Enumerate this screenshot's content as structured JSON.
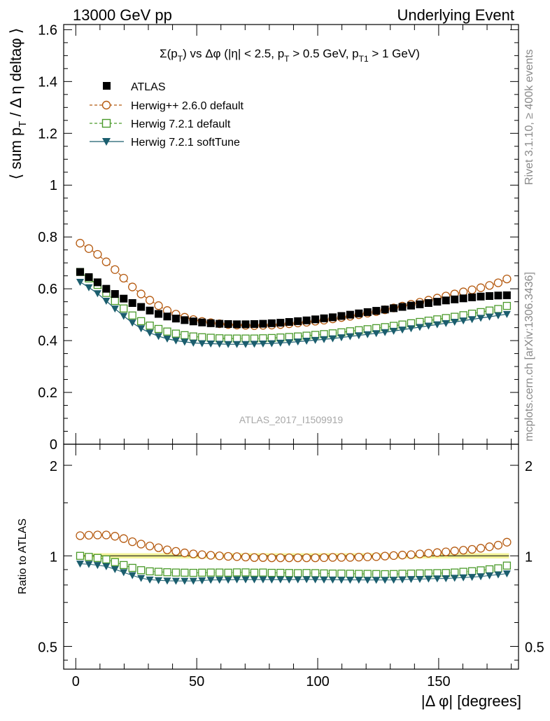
{
  "header": {
    "left": "13000 GeV pp",
    "right": "Underlying Event"
  },
  "side_labels": {
    "rivet": "Rivet 3.1.10, ≥ 400k events",
    "mcplots": "mcplots.cern.ch [arXiv:1306.3436]"
  },
  "chart_data": [
    {
      "type": "scatter",
      "title": "Σ(p_T) vs Δφ (|η| < 2.5, p_T > 0.5 GeV, p_T1 > 1 GeV)",
      "watermark": "ATLAS_2017_I1509919",
      "ylabel": "⟨ sum p_T / Δ η deltaφ ⟩",
      "xlabel": "",
      "xlim": [
        -5,
        183
      ],
      "ylim": [
        0,
        1.62
      ],
      "yticks": [
        "0.2",
        "0.4",
        "0.6",
        "0.8",
        "1",
        "1.2",
        "1.4",
        "1.6"
      ],
      "ytick_values": [
        0.2,
        0.4,
        0.6,
        0.8,
        1.0,
        1.2,
        1.4,
        1.6
      ],
      "partial_tick_label": "0",
      "legend_position": "top-left",
      "x": [
        1.8,
        5.4,
        9,
        12.6,
        16.2,
        19.8,
        23.4,
        27,
        30.6,
        34.2,
        37.8,
        41.4,
        45,
        48.6,
        52.2,
        55.8,
        59.4,
        63,
        66.6,
        70.2,
        73.8,
        77.4,
        81,
        84.6,
        88.2,
        91.8,
        95.4,
        99,
        102.6,
        106.2,
        109.8,
        113.4,
        117,
        120.6,
        124.2,
        127.8,
        131.4,
        135,
        138.6,
        142.2,
        145.8,
        149.4,
        153,
        156.6,
        160.2,
        163.8,
        167.4,
        171,
        174.6,
        178.2
      ],
      "series": [
        {
          "name": "ATLAS",
          "color": "#000000",
          "marker": "filled-square",
          "line": "none",
          "values": [
            0.665,
            0.645,
            0.625,
            0.6,
            0.58,
            0.562,
            0.545,
            0.53,
            0.516,
            0.503,
            0.493,
            0.485,
            0.479,
            0.474,
            0.47,
            0.467,
            0.465,
            0.464,
            0.463,
            0.463,
            0.464,
            0.465,
            0.467,
            0.469,
            0.472,
            0.475,
            0.478,
            0.482,
            0.486,
            0.49,
            0.495,
            0.5,
            0.505,
            0.51,
            0.515,
            0.52,
            0.525,
            0.53,
            0.535,
            0.54,
            0.545,
            0.55,
            0.555,
            0.559,
            0.563,
            0.567,
            0.57,
            0.572,
            0.574,
            0.575
          ]
        },
        {
          "name": "Herwig++ 2.6.0 default",
          "color": "#b55a10",
          "marker": "open-circle",
          "line": "dashed",
          "values": [
            0.776,
            0.755,
            0.733,
            0.704,
            0.674,
            0.641,
            0.607,
            0.58,
            0.556,
            0.535,
            0.516,
            0.502,
            0.49,
            0.481,
            0.474,
            0.469,
            0.465,
            0.462,
            0.46,
            0.459,
            0.458,
            0.459,
            0.46,
            0.462,
            0.465,
            0.468,
            0.471,
            0.475,
            0.479,
            0.484,
            0.489,
            0.494,
            0.5,
            0.506,
            0.512,
            0.519,
            0.526,
            0.533,
            0.54,
            0.548,
            0.556,
            0.564,
            0.572,
            0.58,
            0.588,
            0.596,
            0.604,
            0.613,
            0.623,
            0.638
          ]
        },
        {
          "name": "Herwig 7.2.1 default",
          "color": "#4a9a2a",
          "marker": "open-square",
          "line": "dashed",
          "values": [
            0.665,
            0.64,
            0.615,
            0.584,
            0.553,
            0.524,
            0.497,
            0.475,
            0.458,
            0.445,
            0.435,
            0.427,
            0.421,
            0.416,
            0.413,
            0.411,
            0.409,
            0.408,
            0.408,
            0.408,
            0.408,
            0.409,
            0.41,
            0.412,
            0.414,
            0.416,
            0.419,
            0.422,
            0.425,
            0.428,
            0.432,
            0.436,
            0.44,
            0.444,
            0.448,
            0.452,
            0.457,
            0.462,
            0.467,
            0.472,
            0.477,
            0.482,
            0.487,
            0.492,
            0.498,
            0.504,
            0.51,
            0.516,
            0.522,
            0.534
          ]
        },
        {
          "name": "Herwig 7.2.1 softTune",
          "color": "#1b5e6e",
          "marker": "filled-triangle-down",
          "line": "solid",
          "values": [
            0.626,
            0.605,
            0.582,
            0.553,
            0.523,
            0.495,
            0.469,
            0.447,
            0.43,
            0.417,
            0.407,
            0.4,
            0.395,
            0.391,
            0.389,
            0.388,
            0.387,
            0.386,
            0.386,
            0.386,
            0.387,
            0.388,
            0.389,
            0.391,
            0.393,
            0.396,
            0.399,
            0.402,
            0.405,
            0.408,
            0.412,
            0.416,
            0.42,
            0.424,
            0.428,
            0.432,
            0.437,
            0.442,
            0.447,
            0.452,
            0.457,
            0.462,
            0.467,
            0.472,
            0.477,
            0.482,
            0.487,
            0.492,
            0.497,
            0.502
          ]
        }
      ]
    },
    {
      "type": "scatter",
      "title": "",
      "ylabel": "Ratio to ATLAS",
      "xlabel": "|Δ φ| [degrees]",
      "xlim": [
        -5,
        183
      ],
      "ylim": [
        0.42,
        2.35
      ],
      "yscale": "log",
      "yticks": [
        "0.5",
        "1",
        "2"
      ],
      "ytick_values": [
        0.5,
        1,
        2
      ],
      "xticks": [
        "0",
        "50",
        "100",
        "150"
      ],
      "xtick_values": [
        0,
        50,
        100,
        150
      ],
      "band": {
        "color": "#f4f49a",
        "half_width": 0.02
      },
      "x": [
        1.8,
        5.4,
        9,
        12.6,
        16.2,
        19.8,
        23.4,
        27,
        30.6,
        34.2,
        37.8,
        41.4,
        45,
        48.6,
        52.2,
        55.8,
        59.4,
        63,
        66.6,
        70.2,
        73.8,
        77.4,
        81,
        84.6,
        88.2,
        91.8,
        95.4,
        99,
        102.6,
        106.2,
        109.8,
        113.4,
        117,
        120.6,
        124.2,
        127.8,
        131.4,
        135,
        138.6,
        142.2,
        145.8,
        149.4,
        153,
        156.6,
        160.2,
        163.8,
        167.4,
        171,
        174.6,
        178.2
      ],
      "series": [
        {
          "name": "Herwig++ 2.6.0 default",
          "color": "#b55a10",
          "marker": "open-circle",
          "values": [
            1.167,
            1.171,
            1.173,
            1.173,
            1.162,
            1.141,
            1.114,
            1.094,
            1.078,
            1.064,
            1.047,
            1.035,
            1.023,
            1.015,
            1.009,
            1.004,
            1.0,
            0.996,
            0.994,
            0.991,
            0.987,
            0.987,
            0.985,
            0.985,
            0.985,
            0.985,
            0.985,
            0.985,
            0.986,
            0.988,
            0.988,
            0.988,
            0.99,
            0.992,
            0.994,
            0.998,
            1.002,
            1.006,
            1.009,
            1.015,
            1.02,
            1.025,
            1.031,
            1.038,
            1.044,
            1.051,
            1.06,
            1.072,
            1.085,
            1.11
          ]
        },
        {
          "name": "Herwig 7.2.1 default",
          "color": "#4a9a2a",
          "marker": "open-square",
          "values": [
            1.0,
            0.992,
            0.984,
            0.973,
            0.953,
            0.932,
            0.912,
            0.896,
            0.888,
            0.885,
            0.882,
            0.88,
            0.879,
            0.878,
            0.879,
            0.88,
            0.88,
            0.879,
            0.881,
            0.881,
            0.879,
            0.88,
            0.878,
            0.878,
            0.877,
            0.876,
            0.877,
            0.876,
            0.874,
            0.873,
            0.873,
            0.872,
            0.871,
            0.871,
            0.87,
            0.869,
            0.87,
            0.872,
            0.873,
            0.874,
            0.875,
            0.876,
            0.877,
            0.88,
            0.885,
            0.889,
            0.895,
            0.902,
            0.909,
            0.928
          ]
        },
        {
          "name": "Herwig 7.2.1 softTune",
          "color": "#1b5e6e",
          "marker": "filled-triangle-down",
          "values": [
            0.941,
            0.938,
            0.931,
            0.922,
            0.902,
            0.881,
            0.861,
            0.843,
            0.833,
            0.829,
            0.826,
            0.825,
            0.825,
            0.825,
            0.828,
            0.831,
            0.832,
            0.832,
            0.834,
            0.834,
            0.834,
            0.834,
            0.833,
            0.834,
            0.833,
            0.834,
            0.835,
            0.834,
            0.833,
            0.833,
            0.832,
            0.832,
            0.832,
            0.831,
            0.831,
            0.831,
            0.832,
            0.834,
            0.836,
            0.837,
            0.839,
            0.84,
            0.841,
            0.844,
            0.847,
            0.85,
            0.854,
            0.86,
            0.866,
            0.873
          ]
        }
      ]
    }
  ]
}
